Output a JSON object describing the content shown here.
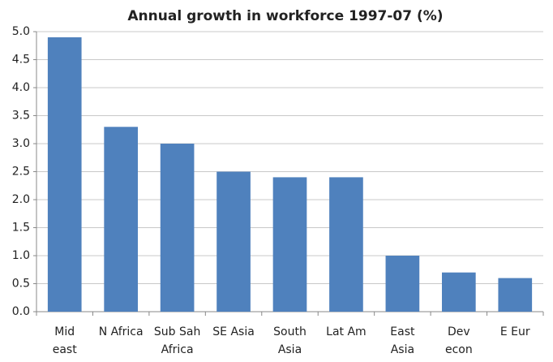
{
  "chart_data": {
    "type": "bar",
    "title": "Annual growth in workforce 1997-07 (%)",
    "categories": [
      "Mid\neast",
      "N Africa",
      "Sub Sah\nAfrica",
      "SE Asia",
      "South\nAsia",
      "Lat Am",
      "East\nAsia",
      "Dev\necon",
      "E Eur"
    ],
    "values": [
      4.9,
      3.3,
      3.0,
      2.5,
      2.4,
      2.4,
      1.0,
      0.7,
      0.6
    ],
    "color": "#4f81bd",
    "ylim": [
      0,
      5
    ],
    "yticks": [
      {
        "value": 0,
        "label": "0.0"
      },
      0.5,
      {
        "value": 1,
        "label": "1.0"
      },
      1.5,
      {
        "value": 2,
        "label": "2.0"
      },
      2.5,
      {
        "value": 3,
        "label": "3.0"
      },
      3.5,
      {
        "value": 4,
        "label": "4.0"
      },
      4.5,
      {
        "value": 5,
        "label": "5.0"
      }
    ],
    "grid": true
  }
}
